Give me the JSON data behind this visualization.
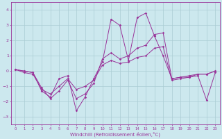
{
  "xlabel": "Windchill (Refroidissement éolien,°C)",
  "background_color": "#cce8ee",
  "grid_color": "#aaccd4",
  "line_color": "#993399",
  "xlim": [
    -0.5,
    23.5
  ],
  "ylim": [
    -3.5,
    4.5
  ],
  "yticks": [
    -3,
    -2,
    -1,
    0,
    1,
    2,
    3,
    4
  ],
  "xticks": [
    0,
    1,
    2,
    3,
    4,
    5,
    6,
    7,
    8,
    9,
    10,
    11,
    12,
    13,
    14,
    15,
    16,
    17,
    18,
    19,
    20,
    21,
    22,
    23
  ],
  "hours": [
    0,
    1,
    2,
    3,
    4,
    5,
    6,
    7,
    8,
    9,
    10,
    11,
    12,
    13,
    14,
    15,
    16,
    17,
    18,
    19,
    20,
    21,
    22,
    23
  ],
  "line1": [
    0.1,
    0.0,
    -0.1,
    -1.3,
    -1.7,
    -0.5,
    -0.3,
    -2.6,
    -1.7,
    -0.5,
    0.6,
    3.4,
    3.0,
    0.7,
    3.5,
    3.8,
    2.3,
    1.0,
    -0.5,
    -0.4,
    -0.4,
    -0.3,
    -1.9,
    -0.1
  ],
  "line2": [
    0.1,
    0.0,
    -0.1,
    -1.1,
    -1.8,
    -1.3,
    -0.6,
    -1.8,
    -1.5,
    -0.8,
    0.8,
    1.2,
    0.8,
    1.0,
    1.5,
    1.7,
    2.4,
    2.5,
    -0.5,
    -0.4,
    -0.3,
    -0.2,
    -0.2,
    0.0
  ],
  "line3": [
    0.1,
    -0.1,
    -0.2,
    -1.2,
    -1.5,
    -1.0,
    -0.5,
    -1.2,
    -1.0,
    -0.6,
    0.4,
    0.7,
    0.5,
    0.6,
    0.9,
    1.0,
    1.5,
    1.6,
    -0.6,
    -0.5,
    -0.4,
    -0.2,
    -0.2,
    0.0
  ]
}
